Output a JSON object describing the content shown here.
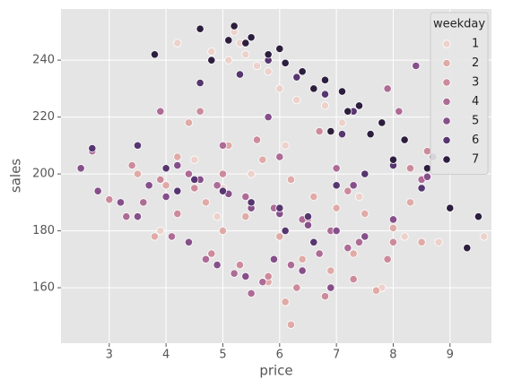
{
  "chart_data": {
    "type": "scatter",
    "xlabel": "price",
    "ylabel": "sales",
    "xlim": [
      2.15,
      9.73
    ],
    "ylim": [
      140.5,
      258
    ],
    "xticks": [
      3,
      4,
      5,
      6,
      7,
      8,
      9
    ],
    "yticks": [
      160,
      180,
      200,
      220,
      240
    ],
    "grid": true,
    "legend_title": "weekday",
    "legend_position": "upper right",
    "series": [
      {
        "name": "1",
        "color": "#edd1cb",
        "x": [
          5.2,
          5.4,
          5.6,
          5.3,
          5.8,
          6.0,
          4.2,
          4.8,
          5.1,
          6.3,
          6.8,
          7.1,
          4.5,
          5.0,
          5.9,
          6.5,
          7.4,
          8.2,
          8.8,
          9.6,
          6.1,
          5.5,
          4.9,
          3.9,
          7.8
        ],
        "values": [
          250,
          242,
          238,
          246,
          236,
          230,
          246,
          243,
          240,
          226,
          224,
          218,
          205,
          195,
          188,
          182,
          192,
          178,
          176,
          178,
          210,
          200,
          185,
          180,
          160
        ]
      },
      {
        "name": "2",
        "color": "#e0aaa7",
        "x": [
          4.4,
          5.1,
          5.7,
          6.2,
          6.6,
          7.0,
          7.5,
          8.0,
          8.5,
          3.5,
          4.0,
          4.7,
          5.4,
          6.0,
          6.4,
          6.9,
          7.3,
          5.8,
          6.2,
          4.2,
          5.0,
          7.7,
          8.3,
          3.8,
          6.1
        ],
        "values": [
          218,
          210,
          205,
          198,
          192,
          188,
          186,
          181,
          176,
          200,
          196,
          190,
          185,
          178,
          170,
          166,
          172,
          162,
          147,
          206,
          180,
          159,
          190,
          178,
          155
        ]
      },
      {
        "name": "3",
        "color": "#cc8a9b",
        "x": [
          3.4,
          3.9,
          4.5,
          5.0,
          5.5,
          6.0,
          6.5,
          7.0,
          7.5,
          8.0,
          8.6,
          4.2,
          4.8,
          5.3,
          5.8,
          6.3,
          6.8,
          7.3,
          7.9,
          3.0,
          5.6,
          6.7,
          4.6,
          7.2,
          8.3
        ],
        "values": [
          203,
          198,
          195,
          200,
          190,
          186,
          184,
          180,
          178,
          176,
          208,
          186,
          172,
          168,
          164,
          160,
          157,
          163,
          170,
          191,
          212,
          215,
          222,
          194,
          202
        ]
      },
      {
        "name": "4",
        "color": "#ad6b96",
        "x": [
          2.7,
          3.3,
          3.9,
          4.4,
          4.9,
          5.4,
          5.9,
          6.4,
          6.9,
          7.4,
          7.9,
          8.5,
          4.1,
          4.7,
          5.2,
          5.7,
          6.2,
          6.7,
          7.2,
          3.6,
          5.0,
          6.0,
          7.0,
          8.1,
          5.5
        ],
        "values": [
          208,
          185,
          222,
          200,
          196,
          192,
          188,
          184,
          180,
          176,
          230,
          198,
          178,
          170,
          165,
          162,
          168,
          172,
          174,
          190,
          210,
          206,
          202,
          222,
          158
        ]
      },
      {
        "name": "5",
        "color": "#864f8a",
        "x": [
          2.5,
          2.8,
          3.2,
          3.7,
          4.2,
          4.6,
          5.1,
          5.5,
          6.0,
          6.5,
          7.0,
          7.5,
          8.0,
          8.6,
          4.4,
          4.9,
          5.4,
          5.9,
          6.4,
          6.9,
          3.5,
          4.0,
          5.8,
          7.3,
          8.4
        ],
        "values": [
          202,
          194,
          190,
          196,
          203,
          198,
          193,
          188,
          186,
          182,
          180,
          178,
          184,
          199,
          176,
          168,
          164,
          170,
          166,
          160,
          185,
          192,
          220,
          196,
          238
        ]
      },
      {
        "name": "6",
        "color": "#573670",
        "x": [
          2.7,
          3.5,
          4.0,
          4.5,
          5.0,
          5.5,
          6.0,
          6.5,
          7.0,
          7.5,
          8.0,
          8.5,
          9.0,
          5.3,
          5.8,
          6.3,
          6.8,
          7.3,
          7.8,
          4.6,
          6.1,
          6.6,
          7.1,
          4.2,
          8.7
        ],
        "values": [
          209,
          210,
          202,
          198,
          194,
          190,
          188,
          185,
          196,
          200,
          203,
          195,
          188,
          235,
          240,
          234,
          228,
          222,
          218,
          232,
          180,
          176,
          214,
          194,
          206
        ]
      },
      {
        "name": "7",
        "color": "#2d1e3e",
        "x": [
          3.8,
          4.6,
          5.2,
          5.5,
          5.8,
          6.1,
          6.4,
          6.8,
          7.1,
          7.4,
          7.8,
          8.2,
          8.6,
          9.0,
          9.3,
          9.5,
          4.8,
          5.4,
          6.0,
          6.6,
          7.2,
          7.6,
          8.0,
          5.1,
          6.9
        ],
        "values": [
          242,
          251,
          252,
          248,
          242,
          239,
          236,
          233,
          229,
          224,
          218,
          212,
          202,
          188,
          174,
          185,
          240,
          246,
          244,
          230,
          222,
          214,
          205,
          247,
          215
        ]
      }
    ]
  }
}
